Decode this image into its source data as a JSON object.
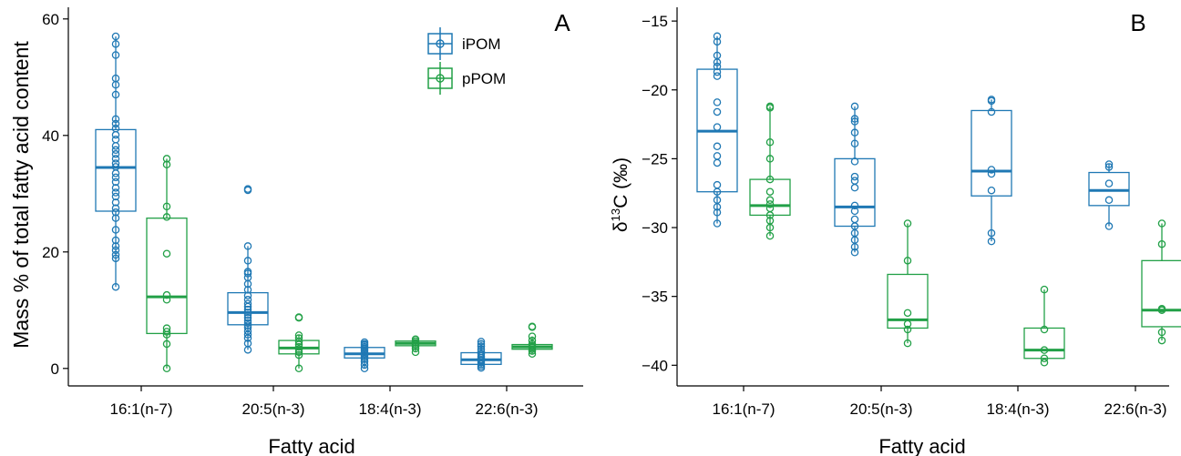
{
  "colors": {
    "ipom": "#1f78b4",
    "ppom": "#22a047",
    "axis": "#000000"
  },
  "chart_data": [
    {
      "type": "box",
      "panel_label": "A",
      "xlabel": "Fatty acid",
      "ylabel": "Mass % of total fatty acid content",
      "ylim": [
        -3,
        62
      ],
      "yticks": [
        "0",
        "20",
        "40",
        "60"
      ],
      "ytick_values": [
        0,
        20,
        40,
        60
      ],
      "categories": [
        "16:1(n-7)",
        "20:5(n-3)",
        "18:4(n-3)",
        "22:6(n-3)"
      ],
      "legend": {
        "position": "top-right",
        "entries": [
          "iPOM",
          "pPOM"
        ]
      },
      "series": [
        {
          "name": "iPOM",
          "boxes": [
            {
              "min": 14,
              "q1": 27,
              "median": 34.5,
              "q3": 41,
              "max": 57,
              "points": [
                14,
                18.9,
                19.5,
                20.3,
                21,
                22,
                23.8,
                25.8,
                26.8,
                27.5,
                28.5,
                29.5,
                30.2,
                31,
                32,
                32.8,
                33.5,
                34.6,
                35.2,
                36,
                36.8,
                37.5,
                38.2,
                39.3,
                40.1,
                41.2,
                42,
                42.8,
                47,
                48.7,
                49.8,
                53.8,
                55.7,
                57
              ]
            },
            {
              "min": 3.2,
              "q1": 7.5,
              "median": 9.6,
              "q3": 13,
              "max": 21,
              "points": [
                3.2,
                4.3,
                5.2,
                5.8,
                6.4,
                7,
                7.4,
                7.8,
                8.2,
                8.7,
                9.2,
                9.6,
                10.1,
                10.6,
                11.1,
                11.8,
                12.5,
                13.5,
                14.5,
                15.6,
                16.3,
                16.6,
                18.5,
                21,
                30.6,
                30.8
              ]
            },
            {
              "min": 0,
              "q1": 1.8,
              "median": 2.5,
              "q3": 3.6,
              "max": 4.5,
              "points": [
                0,
                0.6,
                1.2,
                1.6,
                1.9,
                2.2,
                2.5,
                2.8,
                3.1,
                3.4,
                3.7,
                4,
                4.2,
                4.5
              ]
            },
            {
              "min": 0.1,
              "q1": 0.7,
              "median": 1.5,
              "q3": 2.7,
              "max": 4.6,
              "points": [
                0.1,
                0.4,
                0.7,
                1,
                1.3,
                1.5,
                1.8,
                2.1,
                2.5,
                2.9,
                3.3,
                3.8,
                4.2,
                4.6
              ]
            }
          ]
        },
        {
          "name": "pPOM",
          "boxes": [
            {
              "min": 0,
              "q1": 6,
              "median": 12.3,
              "q3": 25.8,
              "max": 36,
              "points": [
                0,
                4.2,
                5.8,
                6.3,
                6.9,
                11.8,
                12.6,
                19.7,
                26,
                27.8,
                35,
                36
              ]
            },
            {
              "min": 0,
              "q1": 2.5,
              "median": 3.5,
              "q3": 4.8,
              "max": 5.7,
              "points": [
                0,
                2.3,
                2.8,
                3.3,
                3.7,
                4.1,
                4.6,
                5.2,
                5.7,
                8.7,
                8.8
              ]
            },
            {
              "min": 2.8,
              "q1": 3.9,
              "median": 4.3,
              "q3": 4.7,
              "max": 5,
              "points": [
                2.8,
                3.4,
                3.8,
                4.1,
                4.4,
                4.7,
                5
              ]
            },
            {
              "min": 2.5,
              "q1": 3.3,
              "median": 3.7,
              "q3": 4.1,
              "max": 5.5,
              "points": [
                2.5,
                3,
                3.3,
                3.6,
                3.9,
                4.2,
                4.8,
                5.5,
                7.1,
                7.2
              ]
            }
          ]
        }
      ]
    },
    {
      "type": "box",
      "panel_label": "B",
      "xlabel": "Fatty acid",
      "ylabel_prefix": "δ",
      "ylabel_sup": "13",
      "ylabel_suffix": "C (‰)",
      "ylim": [
        -41.5,
        -14
      ],
      "yticks": [
        "−15",
        "−20",
        "−25",
        "−30",
        "−35",
        "−40"
      ],
      "ytick_values": [
        -15,
        -20,
        -25,
        -30,
        -35,
        -40
      ],
      "categories": [
        "16:1(n-7)",
        "20:5(n-3)",
        "18:4(n-3)",
        "22:6(n-3)"
      ],
      "series": [
        {
          "name": "iPOM",
          "boxes": [
            {
              "min": -29.7,
              "q1": -27.4,
              "median": -23,
              "q3": -18.5,
              "max": -16.1,
              "points": [
                -16.1,
                -16.5,
                -17.5,
                -18,
                -18.3,
                -18.7,
                -19,
                -20.9,
                -21.6,
                -22.7,
                -24.1,
                -24.8,
                -25.3,
                -26.9,
                -27.4,
                -28,
                -28.5,
                -28.9,
                -29.7
              ]
            },
            {
              "min": -31.8,
              "q1": -29.9,
              "median": -28.5,
              "q3": -25,
              "max": -21.2,
              "points": [
                -21.2,
                -22.1,
                -22.3,
                -23.1,
                -23.9,
                -25.2,
                -26.3,
                -26.6,
                -27.1,
                -28.4,
                -28.8,
                -29.4,
                -29.9,
                -30.4,
                -30.9,
                -31.4,
                -31.8
              ]
            },
            {
              "min": -31,
              "q1": -27.7,
              "median": -25.9,
              "q3": -21.5,
              "max": -20.7,
              "points": [
                -20.7,
                -20.8,
                -21.6,
                -25.8,
                -26.1,
                -27.3,
                -30.4,
                -31
              ]
            },
            {
              "min": -29.9,
              "q1": -28.4,
              "median": -27.3,
              "q3": -26,
              "max": -25.4,
              "points": [
                -25.4,
                -25.6,
                -26.8,
                -28,
                -29.9
              ]
            }
          ]
        },
        {
          "name": "pPOM",
          "boxes": [
            {
              "min": -30.6,
              "q1": -29.1,
              "median": -28.4,
              "q3": -26.5,
              "max": -21.2,
              "points": [
                -21.2,
                -21.3,
                -23.8,
                -25,
                -26.5,
                -27.4,
                -28,
                -28.3,
                -28.6,
                -29.1,
                -29.5,
                -30,
                -30.6
              ]
            },
            {
              "min": -38.4,
              "q1": -37.3,
              "median": -36.7,
              "q3": -33.4,
              "max": -29.7,
              "points": [
                -29.7,
                -32.4,
                -36.2,
                -37,
                -37.4,
                -38.4
              ]
            },
            {
              "min": -39.6,
              "q1": -39.5,
              "median": -38.9,
              "q3": -37.3,
              "max": -34.5,
              "points": [
                -34.5,
                -37.4,
                -38.9,
                -39.5,
                -39.8
              ]
            },
            {
              "min": -38.2,
              "q1": -37.2,
              "median": -36,
              "q3": -32.4,
              "max": -29.7,
              "points": [
                -29.7,
                -31.2,
                -35.9,
                -36,
                -37.6,
                -38.2
              ]
            }
          ]
        }
      ]
    }
  ]
}
